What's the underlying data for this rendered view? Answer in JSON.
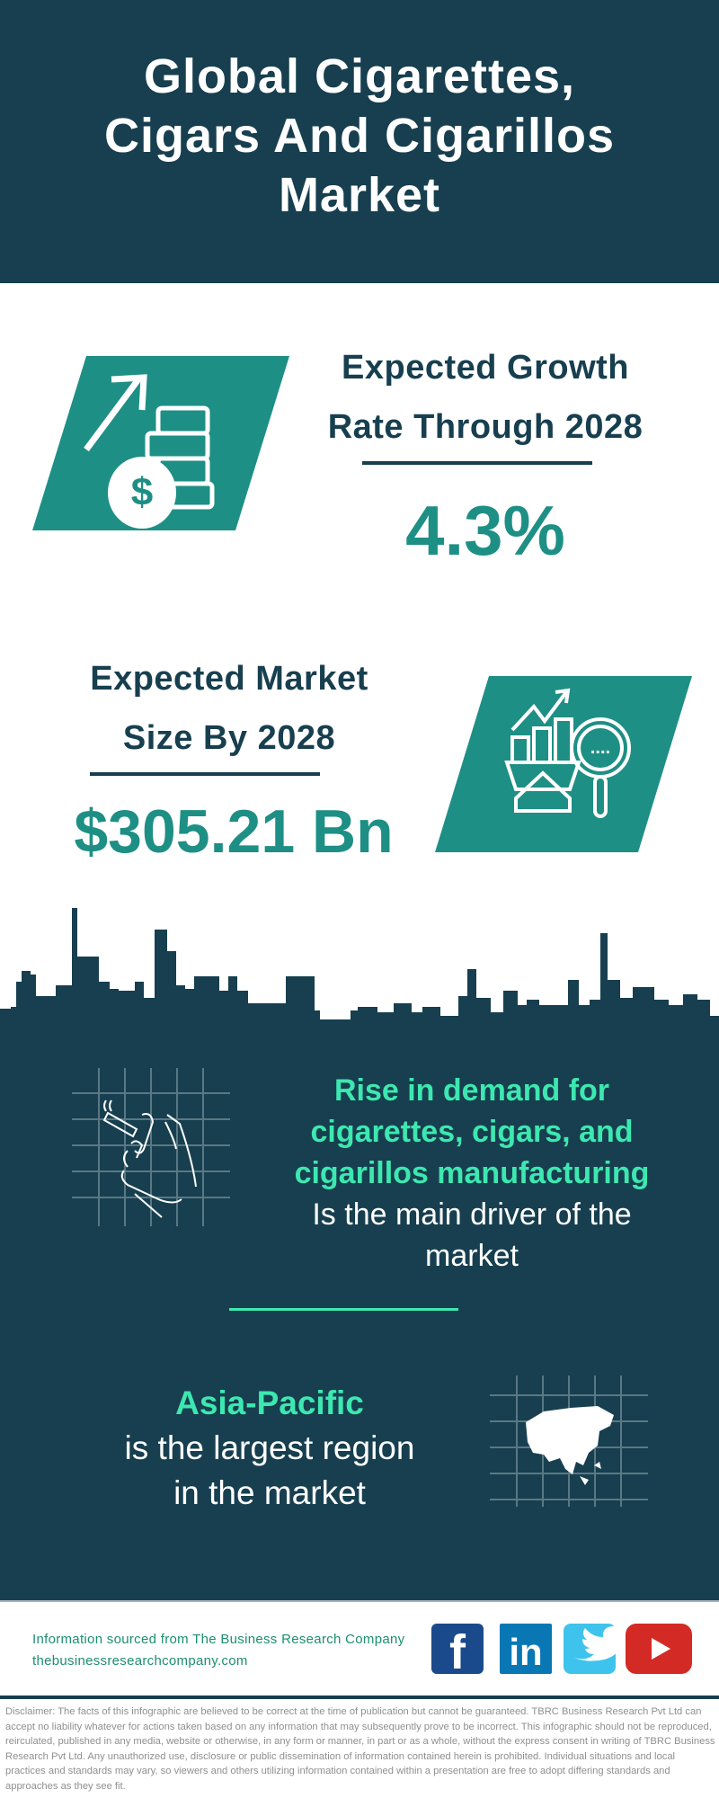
{
  "header": {
    "title_lines": [
      "Global Cigarettes,",
      "Cigars And Cigarillos",
      "Market"
    ]
  },
  "growth": {
    "heading_lines": [
      "Expected Growth",
      "Rate Through 2028"
    ],
    "value": "4.3%",
    "icon": "money-growth-icon"
  },
  "market_size": {
    "heading_lines": [
      "Expected Market",
      "Size By 2028"
    ],
    "value": "$305.21 Bn",
    "icon": "market-analysis-icon"
  },
  "driver": {
    "highlight_lines": [
      "Rise in  demand for",
      "cigarettes, cigars, and",
      "cigarillos manufacturing"
    ],
    "text_lines": [
      "Is the main driver of the",
      "market"
    ],
    "icon": "hand-cigarette-icon"
  },
  "region": {
    "highlight": "Asia-Pacific",
    "text_lines": [
      "is the largest region",
      "in the market"
    ],
    "icon": "asia-map-icon"
  },
  "footer": {
    "source": "Information sourced from The Business Research Company",
    "website": "thebusinessresearchcompany.com",
    "social": [
      "facebook-icon",
      "linkedin-icon",
      "twitter-icon",
      "youtube-icon"
    ],
    "disclaimer": "Disclaimer: The facts of this infographic are believed to be correct at the time of publication but cannot be guaranteed. TBRC Business Research Pvt Ltd can accept no liability whatever for actions taken based on any information that may subsequently prove to be incorrect. This infographic should not be reproduced, reirculated, published in any media, website or otherwise, in any form or manner, in part or as a whole, without the express consent in writing of TBRC Business Research Pvt Ltd. Any unauthorized use, disclosure or public dissemination of information contained herein is prohibited. Individual situations and local practices and standards may vary, so viewers and others utilizing information contained within a presentation are free to adopt differing standards and approaches as they see fit."
  },
  "colors": {
    "dark": "#173f4f",
    "teal": "#1e8f85",
    "green": "#3de8b0",
    "facebook": "#1b4a8c",
    "linkedin": "#0a77b5",
    "twitter": "#3ec4ec",
    "youtube": "#d42a25"
  }
}
